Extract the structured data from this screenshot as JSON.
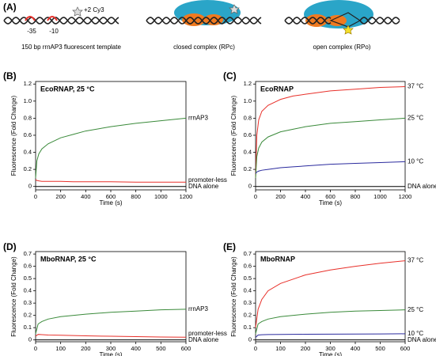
{
  "diagram": {
    "panel": "(A)",
    "label": "+2 Cy3",
    "minus35": "-35",
    "minus10": "-10",
    "template": "150 bp rrnAP3 fluorescent template",
    "closed": "closed complex (RPc)",
    "open": "open complex (RPo)"
  },
  "chart_data": [
    {
      "type": "line",
      "panel": "(B)",
      "title": "EcoRNAP, 25 °C",
      "xlabel": "Time (s)",
      "ylabel": "Fluorescence (Fold Change)",
      "x": [
        0,
        10,
        25,
        50,
        100,
        200,
        300,
        400,
        600,
        800,
        1000,
        1200
      ],
      "xlim": [
        0,
        1200
      ],
      "xticks": [
        0,
        200,
        400,
        600,
        800,
        1000,
        1200
      ],
      "ylim": [
        -0.04,
        1.23
      ],
      "yticks": [
        0,
        0.2,
        0.4,
        0.6,
        0.8,
        {
          "value": 1,
          "label": "1.0"
        },
        1.2
      ],
      "series": [
        {
          "name": "rrnAP3",
          "color": "#3a8a3a",
          "values": [
            0.1,
            0.3,
            0.38,
            0.44,
            0.5,
            0.57,
            0.61,
            0.65,
            0.7,
            0.74,
            0.77,
            0.8
          ]
        },
        {
          "name": "promoter-less",
          "color": "#e8302a",
          "values": [
            0.08,
            0.07,
            0.065,
            0.06,
            0.06,
            0.06,
            0.055,
            0.055,
            0.055,
            0.05,
            0.05,
            0.05
          ]
        },
        {
          "name": "DNA alone",
          "color": "#000000",
          "values": [
            0,
            0,
            0,
            0,
            0,
            0,
            0,
            0,
            0,
            0,
            0,
            0
          ]
        }
      ]
    },
    {
      "type": "line",
      "panel": "(C)",
      "title": "EcoRNAP",
      "xlabel": "Time (s)",
      "ylabel": "Fluorescence (Fold Change)",
      "x": [
        0,
        10,
        25,
        50,
        100,
        200,
        300,
        400,
        600,
        800,
        1000,
        1200
      ],
      "xlim": [
        0,
        1200
      ],
      "xticks": [
        0,
        200,
        400,
        600,
        800,
        1000,
        1200
      ],
      "ylim": [
        -0.04,
        1.23
      ],
      "yticks": [
        0,
        0.2,
        0.4,
        0.6,
        0.8,
        {
          "value": 1,
          "label": "1.0"
        },
        1.2
      ],
      "series": [
        {
          "name": "37 °C",
          "color": "#e8302a",
          "values": [
            0.1,
            0.6,
            0.78,
            0.88,
            0.95,
            1.02,
            1.06,
            1.08,
            1.12,
            1.14,
            1.16,
            1.17
          ]
        },
        {
          "name": "25 °C",
          "color": "#3a8a3a",
          "values": [
            0.1,
            0.35,
            0.45,
            0.52,
            0.58,
            0.64,
            0.67,
            0.7,
            0.74,
            0.76,
            0.78,
            0.8
          ]
        },
        {
          "name": "10 °C",
          "color": "#2b2b9e",
          "values": [
            0.15,
            0.17,
            0.18,
            0.19,
            0.2,
            0.22,
            0.23,
            0.24,
            0.26,
            0.27,
            0.28,
            0.29
          ]
        },
        {
          "name": "DNA alone",
          "color": "#000000",
          "values": [
            0,
            0,
            0,
            0,
            0,
            0,
            0,
            0,
            0,
            0,
            0,
            0
          ]
        }
      ]
    },
    {
      "type": "line",
      "panel": "(D)",
      "title": "MboRNAP, 25 °C",
      "xlabel": "Time (s)",
      "ylabel": "Fluorescence (Fold Change)",
      "x": [
        0,
        10,
        25,
        50,
        100,
        200,
        300,
        400,
        500,
        600
      ],
      "xlim": [
        0,
        600
      ],
      "xticks": [
        0,
        100,
        200,
        300,
        400,
        500,
        600
      ],
      "ylim": [
        -0.015,
        0.72
      ],
      "yticks": [
        0,
        0.1,
        0.2,
        0.3,
        0.4,
        0.5,
        0.6,
        0.7
      ],
      "series": [
        {
          "name": "rrnAP3",
          "color": "#3a8a3a",
          "values": [
            0.05,
            0.13,
            0.15,
            0.17,
            0.19,
            0.21,
            0.225,
            0.235,
            0.245,
            0.25
          ]
        },
        {
          "name": "promoter-less",
          "color": "#e8302a",
          "values": [
            0.03,
            0.045,
            0.043,
            0.04,
            0.038,
            0.033,
            0.03,
            0.027,
            0.024,
            0.022
          ]
        },
        {
          "name": "DNA alone",
          "color": "#000000",
          "values": [
            0,
            0,
            0,
            0,
            0,
            0,
            0,
            0,
            0,
            0
          ]
        }
      ]
    },
    {
      "type": "line",
      "panel": "(E)",
      "title": "MboRNAP",
      "xlabel": "Time (s)",
      "ylabel": "Fluorescence (Fold Change)",
      "x": [
        0,
        10,
        25,
        50,
        100,
        200,
        300,
        400,
        500,
        600
      ],
      "xlim": [
        0,
        600
      ],
      "xticks": [
        0,
        100,
        200,
        300,
        400,
        500,
        600
      ],
      "ylim": [
        -0.015,
        0.72
      ],
      "yticks": [
        0,
        0.1,
        0.2,
        0.3,
        0.4,
        0.5,
        0.6,
        0.7
      ],
      "series": [
        {
          "name": "37 °C",
          "color": "#e8302a",
          "values": [
            0.1,
            0.25,
            0.33,
            0.4,
            0.46,
            0.53,
            0.57,
            0.6,
            0.625,
            0.645
          ]
        },
        {
          "name": "25 °C",
          "color": "#3a8a3a",
          "values": [
            0.05,
            0.13,
            0.15,
            0.17,
            0.19,
            0.21,
            0.225,
            0.235,
            0.24,
            0.245
          ]
        },
        {
          "name": "10 °C",
          "color": "#2b2b9e",
          "values": [
            0.02,
            0.04,
            0.042,
            0.044,
            0.045,
            0.046,
            0.047,
            0.048,
            0.049,
            0.05
          ]
        },
        {
          "name": "DNA alone",
          "color": "#000000",
          "values": [
            0,
            0,
            0,
            0,
            0,
            0,
            0,
            0,
            0,
            0
          ]
        }
      ]
    }
  ]
}
